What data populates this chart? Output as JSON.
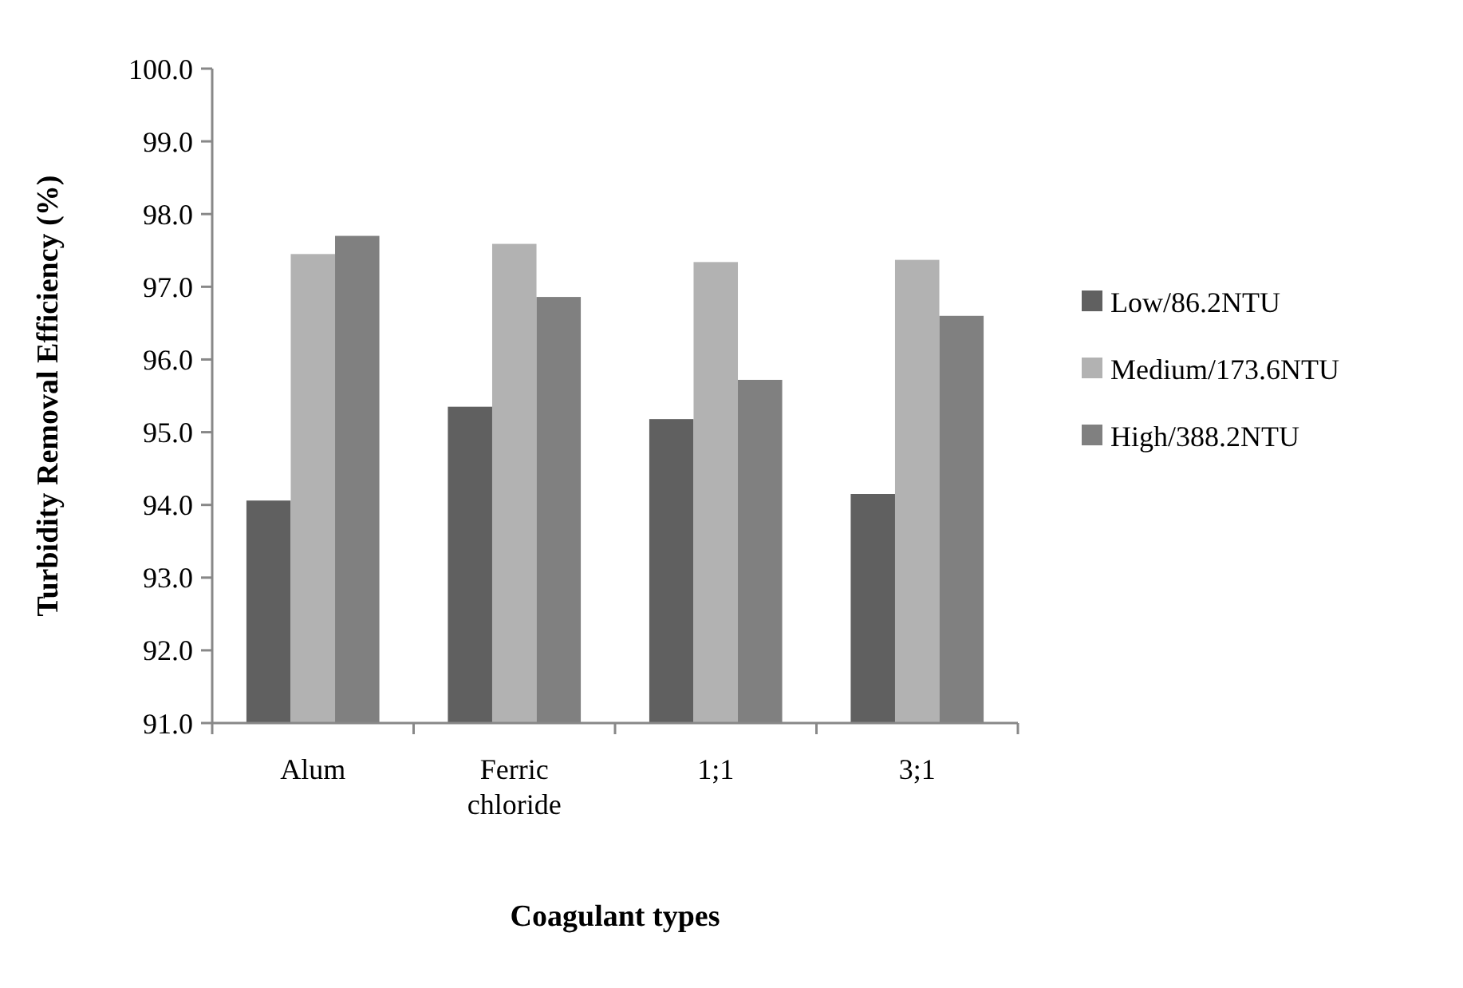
{
  "chart_data": {
    "type": "bar",
    "xlabel": "Coagulant  types",
    "ylabel": "Turbidity Removal Efficiency (%)",
    "categories": [
      "Alum",
      "Ferric chloride",
      "1;1",
      "3;1"
    ],
    "series": [
      {
        "name": "Low/86.2NTU",
        "color": "#606060",
        "values": [
          94.06,
          95.35,
          95.18,
          94.15
        ]
      },
      {
        "name": "Medium/173.6NTU",
        "color": "#b2b2b2",
        "values": [
          97.45,
          97.59,
          97.34,
          97.37
        ]
      },
      {
        "name": "High/388.2NTU",
        "color": "#808080",
        "values": [
          97.7,
          96.86,
          95.72,
          96.6
        ]
      }
    ],
    "ylim": [
      91,
      100
    ],
    "yticks": [
      {
        "value": 91,
        "label": "91.0"
      },
      {
        "value": 92,
        "label": "92.0"
      },
      {
        "value": 93,
        "label": "93.0"
      },
      {
        "value": 94,
        "label": "94.0"
      },
      {
        "value": 95,
        "label": "95.0"
      },
      {
        "value": 96,
        "label": "96.0"
      },
      {
        "value": 97,
        "label": "97.0"
      },
      {
        "value": 98,
        "label": "98.0"
      },
      {
        "value": 99,
        "label": "99.0"
      },
      {
        "value": 100,
        "label": "100.0"
      }
    ],
    "grid": false,
    "legend": "right"
  }
}
